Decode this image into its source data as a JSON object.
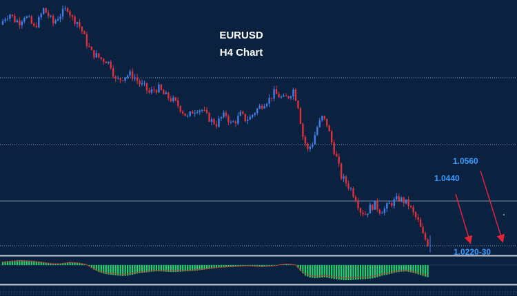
{
  "chart_data": {
    "type": "candlestick",
    "title": "EURUSD",
    "subtitle": "H4 Chart",
    "ylim": [
      1.016,
      1.096
    ],
    "colors": {
      "background": "#0b2140",
      "bull": "#3f7fe6",
      "bear": "#e0313a",
      "level_text": "#3b9cff",
      "arrow": "#e0243a",
      "hist_bar": "#22d46b",
      "hist_signal": "#c0392b",
      "grid_dotted": "#8fa4c2",
      "grid_solid": "#7d8ea8",
      "panel_border": "#c8ccd4"
    },
    "levels": [
      {
        "label": "1.0560",
        "value": 1.056
      },
      {
        "label": "1.0440",
        "value": 1.044
      },
      {
        "label": "1.0220-30",
        "value": 1.0225
      }
    ],
    "close_path": [
      1.088,
      1.0905,
      1.0915,
      1.0895,
      1.089,
      1.091,
      1.0895,
      1.087,
      1.0895,
      1.093,
      1.091,
      1.0885,
      1.0905,
      1.092,
      1.0935,
      1.09,
      1.089,
      1.086,
      1.082,
      1.079,
      1.078,
      1.077,
      1.0765,
      1.075,
      1.07,
      1.0705,
      1.0715,
      1.072,
      1.071,
      1.069,
      1.068,
      1.066,
      1.067,
      1.0675,
      1.0655,
      1.0645,
      1.0635,
      1.062,
      1.06,
      1.058,
      1.06,
      1.061,
      1.0605,
      1.0585,
      1.057,
      1.056,
      1.058,
      1.059,
      1.056,
      1.057,
      1.059,
      1.0575,
      1.058,
      1.06,
      1.0615,
      1.063,
      1.064,
      1.066,
      1.065,
      1.064,
      1.065,
      1.067,
      1.062,
      1.052,
      1.0475,
      1.05,
      1.055,
      1.058,
      1.056,
      1.05,
      1.045,
      1.039,
      1.037,
      1.035,
      1.032,
      1.028,
      1.027,
      1.029,
      1.03,
      1.028,
      1.0285,
      1.03,
      1.031,
      1.032,
      1.031,
      1.03,
      1.027,
      1.0245,
      1.02,
      1.0175
    ],
    "oscillator": [
      40,
      48,
      52,
      56,
      58,
      55,
      52,
      46,
      40,
      30,
      22,
      18,
      20,
      28,
      36,
      34,
      26,
      14,
      -8,
      -30,
      -46,
      -56,
      -62,
      -66,
      -70,
      -72,
      -70,
      -64,
      -56,
      -52,
      -48,
      -44,
      -42,
      -42,
      -44,
      -46,
      -46,
      -44,
      -42,
      -40,
      -38,
      -34,
      -30,
      -26,
      -22,
      -18,
      -16,
      -14,
      -12,
      -10,
      -8,
      -6,
      -8,
      -10,
      -12,
      -10,
      -8,
      -4,
      8,
      14,
      10,
      2,
      -40,
      -70,
      -82,
      -86,
      -84,
      -80,
      -86,
      -92,
      -96,
      -100,
      -100,
      -98,
      -96,
      -94,
      -92,
      -88,
      -80,
      -70,
      -64,
      -56,
      -48,
      -44,
      -42,
      -48,
      -56,
      -66,
      -76,
      -84
    ]
  }
}
